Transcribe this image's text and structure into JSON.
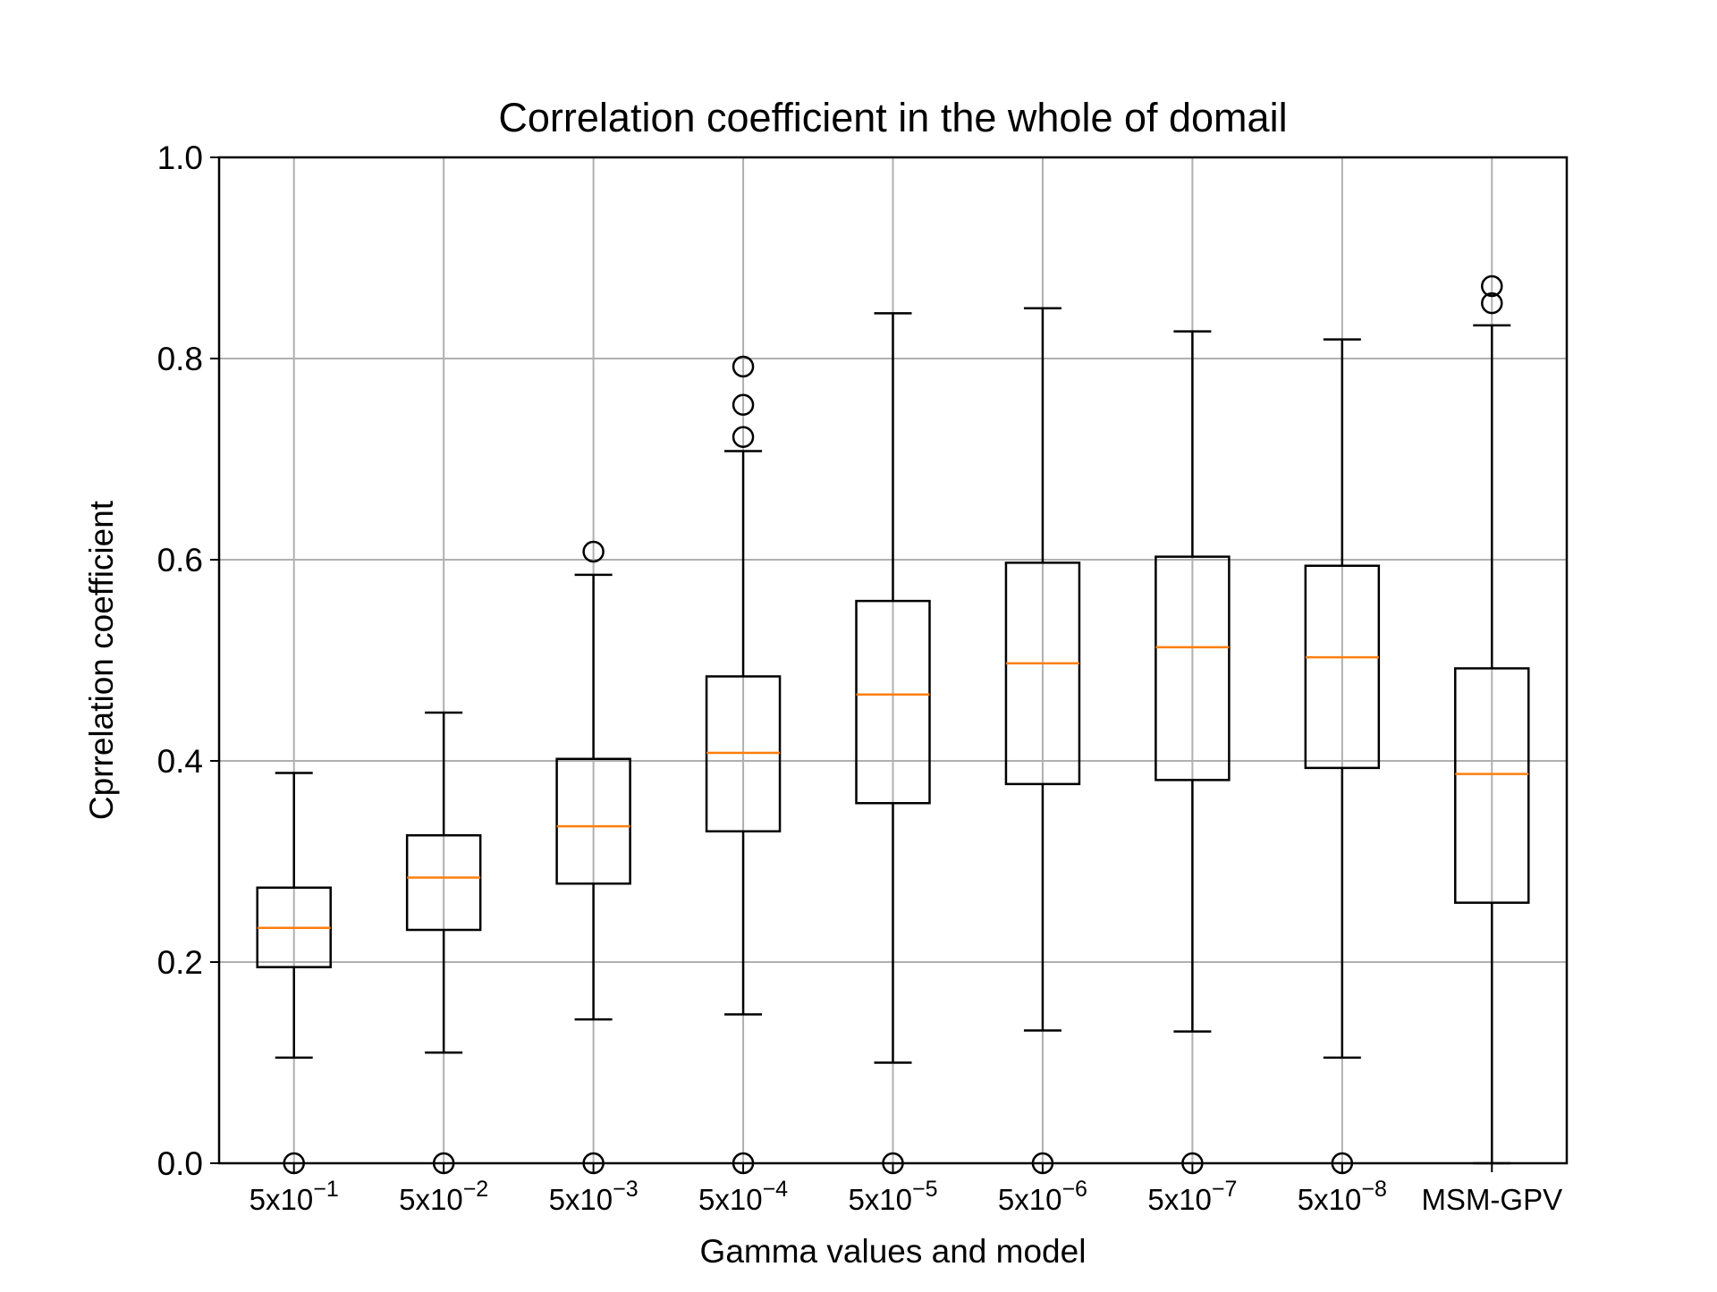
{
  "chart_data": {
    "type": "boxplot",
    "title": "Correlation coefficient in the whole of domail",
    "xlabel": "Gamma values and model",
    "ylabel": "Cprrelation coefficient",
    "ylim": [
      0.0,
      1.0
    ],
    "yticks": [
      "0.0",
      "0.2",
      "0.4",
      "0.6",
      "0.8",
      "1.0"
    ],
    "grid": true,
    "colors": {
      "box": "#000000",
      "median": "#ff7f0e",
      "grid": "#b0b0b0"
    },
    "categories": [
      {
        "base": "5x10",
        "exp": "−1"
      },
      {
        "base": "5x10",
        "exp": "−2"
      },
      {
        "base": "5x10",
        "exp": "−3"
      },
      {
        "base": "5x10",
        "exp": "−4"
      },
      {
        "base": "5x10",
        "exp": "−5"
      },
      {
        "base": "5x10",
        "exp": "−6"
      },
      {
        "base": "5x10",
        "exp": "−7"
      },
      {
        "base": "5x10",
        "exp": "−8"
      },
      {
        "base": "MSM-GPV",
        "exp": ""
      }
    ],
    "boxes": [
      {
        "whislo": 0.105,
        "q1": 0.195,
        "med": 0.234,
        "q3": 0.274,
        "whishi": 0.388,
        "fliers": [
          0.0
        ]
      },
      {
        "whislo": 0.11,
        "q1": 0.232,
        "med": 0.284,
        "q3": 0.326,
        "whishi": 0.448,
        "fliers": [
          0.0
        ]
      },
      {
        "whislo": 0.143,
        "q1": 0.278,
        "med": 0.335,
        "q3": 0.402,
        "whishi": 0.585,
        "fliers": [
          0.0,
          0.608
        ]
      },
      {
        "whislo": 0.148,
        "q1": 0.33,
        "med": 0.408,
        "q3": 0.484,
        "whishi": 0.708,
        "fliers": [
          0.0,
          0.722,
          0.754,
          0.792
        ]
      },
      {
        "whislo": 0.1,
        "q1": 0.358,
        "med": 0.466,
        "q3": 0.559,
        "whishi": 0.845,
        "fliers": [
          0.0
        ]
      },
      {
        "whislo": 0.132,
        "q1": 0.377,
        "med": 0.497,
        "q3": 0.597,
        "whishi": 0.85,
        "fliers": [
          0.0
        ]
      },
      {
        "whislo": 0.131,
        "q1": 0.381,
        "med": 0.513,
        "q3": 0.603,
        "whishi": 0.827,
        "fliers": [
          0.0
        ]
      },
      {
        "whislo": 0.105,
        "q1": 0.393,
        "med": 0.503,
        "q3": 0.594,
        "whishi": 0.819,
        "fliers": [
          0.0
        ]
      },
      {
        "whislo": 0.0,
        "q1": 0.259,
        "med": 0.387,
        "q3": 0.492,
        "whishi": 0.833,
        "fliers": [
          0.855,
          0.872
        ]
      }
    ]
  }
}
